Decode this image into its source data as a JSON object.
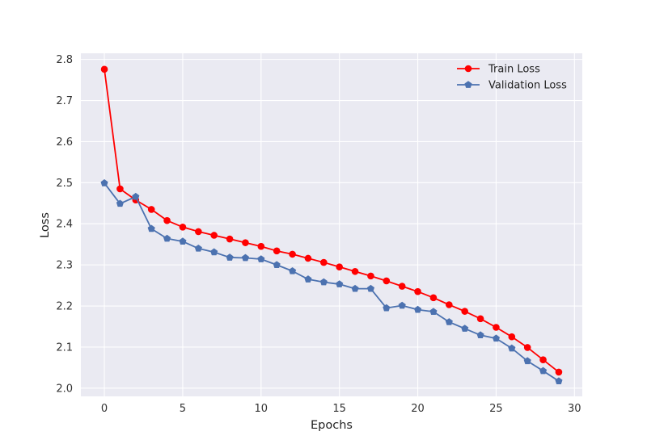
{
  "chart_data": {
    "type": "line",
    "xlabel": "Epochs",
    "ylabel": "Loss",
    "xlim": [
      -1.5,
      30.5
    ],
    "ylim": [
      1.98,
      2.815
    ],
    "xticks": [
      0,
      5,
      10,
      15,
      20,
      25,
      30
    ],
    "yticks": [
      2.0,
      2.1,
      2.2,
      2.3,
      2.4,
      2.5,
      2.6,
      2.7,
      2.8
    ],
    "grid": true,
    "legend_position": "top-right",
    "x": [
      0,
      1,
      2,
      3,
      4,
      5,
      6,
      7,
      8,
      9,
      10,
      11,
      12,
      13,
      14,
      15,
      16,
      17,
      18,
      19,
      20,
      21,
      22,
      23,
      24,
      25,
      26,
      27,
      28,
      29
    ],
    "series": [
      {
        "name": "Train Loss",
        "color": "#ff0000",
        "marker": "circle",
        "values": [
          2.776,
          2.485,
          2.458,
          2.435,
          2.408,
          2.392,
          2.381,
          2.372,
          2.363,
          2.354,
          2.345,
          2.334,
          2.326,
          2.316,
          2.306,
          2.295,
          2.284,
          2.273,
          2.261,
          2.248,
          2.235,
          2.22,
          2.203,
          2.187,
          2.169,
          2.148,
          2.125,
          2.099,
          2.069,
          2.039
        ]
      },
      {
        "name": "Validation Loss",
        "color": "#4c72b0",
        "marker": "pentagon",
        "values": [
          2.499,
          2.449,
          2.466,
          2.388,
          2.364,
          2.357,
          2.34,
          2.331,
          2.318,
          2.317,
          2.314,
          2.3,
          2.285,
          2.265,
          2.258,
          2.253,
          2.242,
          2.242,
          2.195,
          2.201,
          2.191,
          2.186,
          2.161,
          2.145,
          2.129,
          2.121,
          2.097,
          2.066,
          2.042,
          2.017
        ]
      }
    ]
  }
}
